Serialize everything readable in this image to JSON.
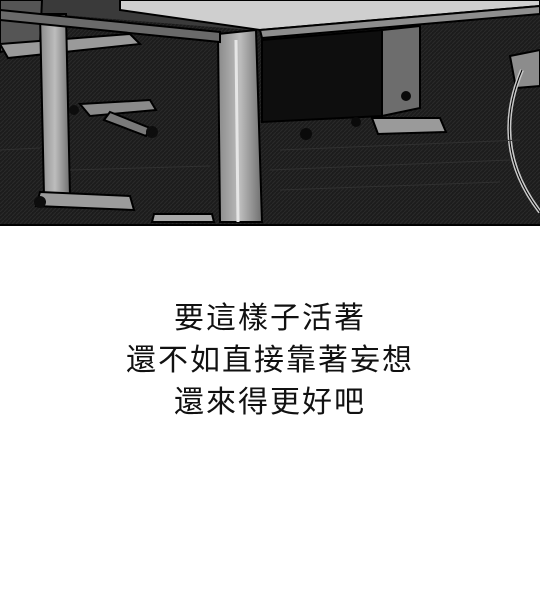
{
  "panel": {
    "scene": "dark-office-under-desk"
  },
  "caption": {
    "lines": [
      "要這樣子活著",
      "還不如直接靠著妄想",
      "還來得更好吧"
    ]
  },
  "colors": {
    "page_background": "#ffffff",
    "panel_dark": "#1a1a1a",
    "text": "#111111"
  }
}
